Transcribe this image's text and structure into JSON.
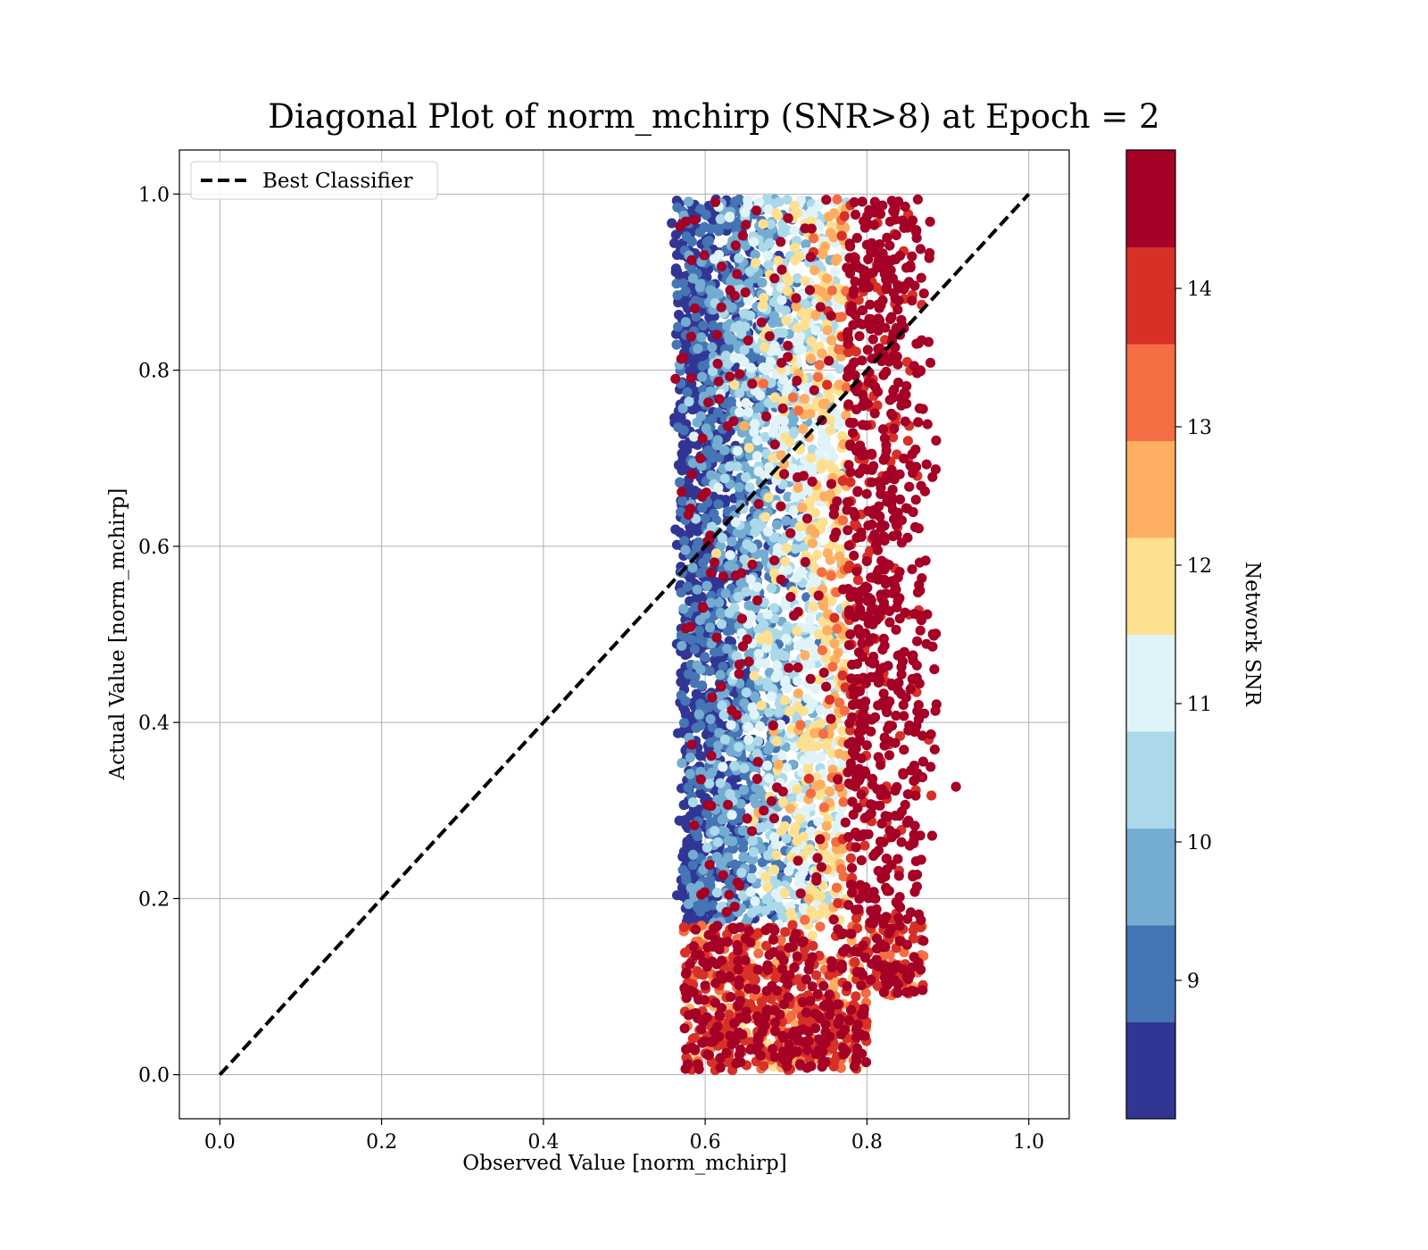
{
  "chart_data": {
    "type": "scatter",
    "title": "Diagonal Plot of norm_mchirp (SNR>8) at Epoch = 2",
    "xlabel": "Observed Value [norm_mchirp]",
    "ylabel": "Actual Value [norm_mchirp]",
    "xlim": [
      -0.05,
      1.05
    ],
    "ylim": [
      -0.05,
      1.05
    ],
    "grid": true,
    "x_ticks": [
      0.0,
      0.2,
      0.4,
      0.6,
      0.8,
      1.0
    ],
    "x_tick_labels": [
      "0.0",
      "0.2",
      "0.4",
      "0.6",
      "0.8",
      "1.0"
    ],
    "y_ticks": [
      0.0,
      0.2,
      0.4,
      0.6,
      0.8,
      1.0
    ],
    "y_tick_labels": [
      "0.0",
      "0.2",
      "0.4",
      "0.6",
      "0.8",
      "1.0"
    ],
    "legend": {
      "placement": "upper-left",
      "entries": [
        {
          "label": "Best Classifier",
          "style": "dashed",
          "color": "#000000"
        }
      ]
    },
    "reference_line": {
      "name": "Best Classifier",
      "x": [
        0.0,
        1.0
      ],
      "y": [
        0.0,
        1.0
      ],
      "color": "#000000"
    },
    "scatter_description": {
      "observed_range": [
        0.56,
        0.91
      ],
      "actual_range": [
        0.0,
        1.0
      ],
      "low_snr_region_observed": [
        0.56,
        0.74
      ],
      "high_snr_region_observed": [
        0.76,
        0.89
      ]
    },
    "colorbar": {
      "label": "Network SNR",
      "vmin": 8.0,
      "vmax": 15.0,
      "ticks": [
        9,
        10,
        11,
        12,
        13,
        14
      ],
      "tick_labels": [
        "9",
        "10",
        "11",
        "12",
        "13",
        "14"
      ],
      "bins": [
        8.0,
        8.7,
        9.4,
        10.1,
        10.8,
        11.5,
        12.2,
        12.9,
        13.6,
        14.3,
        15.0
      ],
      "colors": [
        "#313695",
        "#4575b4",
        "#74add1",
        "#abd9e9",
        "#e0f3f8",
        "#fee090",
        "#fdae61",
        "#f46d43",
        "#d73027",
        "#a50026"
      ]
    }
  }
}
